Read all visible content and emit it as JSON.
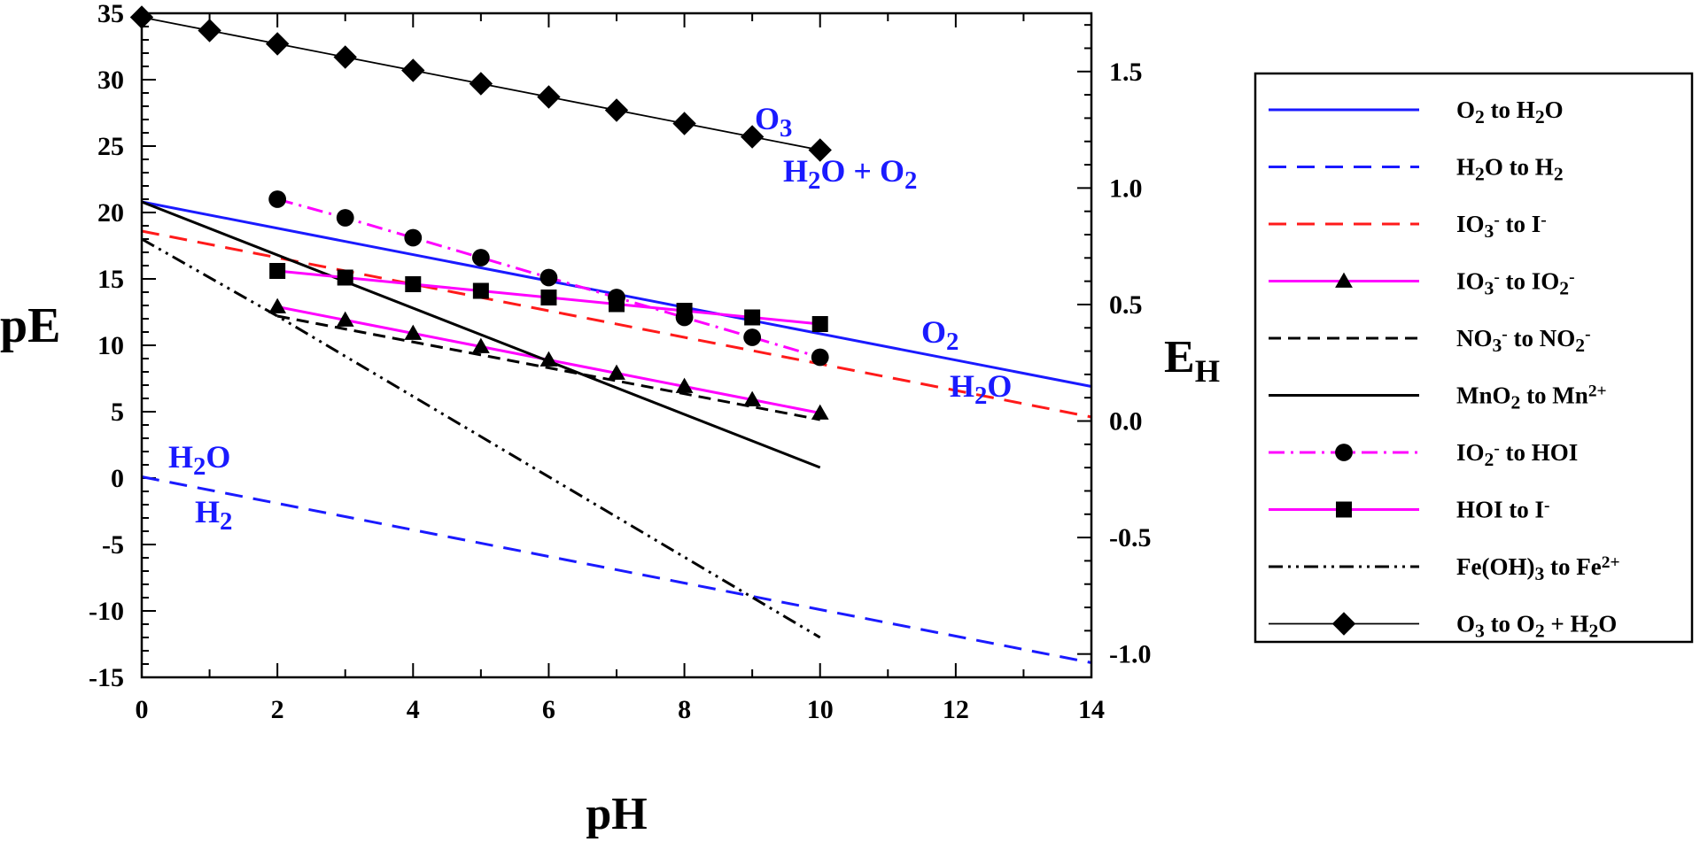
{
  "chart_data": {
    "type": "line",
    "title": "",
    "xlabel": "pH",
    "ylabel": "pE",
    "y2label": {
      "main": "E",
      "sub": "H"
    },
    "xlim": [
      0,
      14
    ],
    "ylim": [
      -15,
      35
    ],
    "y2lim": [
      -1.1,
      1.75
    ],
    "x_ticks": [
      "0",
      "2",
      "4",
      "6",
      "8",
      "10",
      "12",
      "14"
    ],
    "y_ticks": [
      "35",
      "30",
      "25",
      "20",
      "15",
      "10",
      "5",
      "0",
      "-5",
      "-10",
      "-15"
    ],
    "y2_ticks": [
      "1.5",
      "1.0",
      "0.5",
      "0.0",
      "-0.5",
      "-1.0"
    ],
    "y2_tick_values": [
      1.5,
      1.0,
      0.5,
      0.0,
      -0.5,
      -1.0
    ],
    "series": [
      {
        "key": "o2_h2o",
        "name": "O2 to H2O",
        "legend": {
          "parts": [
            [
              "O",
              ""
            ],
            [
              "2",
              "sub"
            ],
            [
              " to H",
              ""
            ],
            [
              "2",
              "sub"
            ],
            [
              "O",
              ""
            ]
          ]
        },
        "color": "#1a1aff",
        "dash": "",
        "marker": "none",
        "x": [
          0,
          14
        ],
        "y": [
          20.8,
          6.9
        ]
      },
      {
        "key": "h2o_h2",
        "name": "H2O to H2",
        "legend": {
          "parts": [
            [
              "H",
              ""
            ],
            [
              "2",
              "sub"
            ],
            [
              "O to H",
              ""
            ],
            [
              "2",
              "sub"
            ]
          ]
        },
        "color": "#1a1aff",
        "dash": "20 12",
        "marker": "none",
        "x": [
          0,
          14
        ],
        "y": [
          0.1,
          -13.9
        ]
      },
      {
        "key": "io3_i",
        "name": "IO3- to I-",
        "legend": {
          "parts": [
            [
              "IO",
              ""
            ],
            [
              "3",
              "sub"
            ],
            [
              "-",
              "sup"
            ],
            [
              " to I",
              ""
            ],
            [
              "-",
              "sup"
            ]
          ]
        },
        "color": "#ff1a1a",
        "dash": "20 12",
        "marker": "none",
        "x": [
          0,
          14
        ],
        "y": [
          18.6,
          4.6
        ]
      },
      {
        "key": "io3_io2",
        "name": "IO3- to IO2-",
        "legend": {
          "parts": [
            [
              "IO",
              ""
            ],
            [
              "3",
              "sub"
            ],
            [
              "-",
              "sup"
            ],
            [
              " to IO",
              ""
            ],
            [
              "2",
              "sub"
            ],
            [
              "-",
              "sup"
            ]
          ]
        },
        "color": "#ff00ff",
        "dash": "",
        "marker": "triangle",
        "x": [
          2,
          3,
          4,
          5,
          6,
          7,
          8,
          9,
          10
        ],
        "y": [
          12.9,
          11.9,
          10.9,
          9.9,
          8.9,
          7.9,
          6.9,
          5.9,
          4.9
        ]
      },
      {
        "key": "no3_no2",
        "name": "NO3- to NO2-",
        "legend": {
          "parts": [
            [
              "NO",
              ""
            ],
            [
              "3",
              "sub"
            ],
            [
              "-",
              "sup"
            ],
            [
              " to NO",
              ""
            ],
            [
              "2",
              "sub"
            ],
            [
              "-",
              "sup"
            ]
          ]
        },
        "color": "#000000",
        "dash": "14 8",
        "marker": "none",
        "x": [
          2,
          10
        ],
        "y": [
          12.2,
          4.4
        ]
      },
      {
        "key": "mno2_mn",
        "name": "MnO2 to Mn2+",
        "legend": {
          "parts": [
            [
              "MnO",
              ""
            ],
            [
              "2",
              "sub"
            ],
            [
              " to Mn",
              ""
            ],
            [
              "2+",
              "sup"
            ]
          ]
        },
        "color": "#000000",
        "dash": "",
        "marker": "none",
        "x": [
          0,
          10
        ],
        "y": [
          20.8,
          0.8
        ]
      },
      {
        "key": "io2_hoi",
        "name": "IO2- to HOI",
        "legend": {
          "parts": [
            [
              "IO",
              ""
            ],
            [
              "2",
              "sub"
            ],
            [
              "-",
              "sup"
            ],
            [
              " to HOI",
              ""
            ]
          ]
        },
        "color": "#ff00ff",
        "dash": "18 7 3 7",
        "marker": "circle",
        "x": [
          2,
          3,
          4,
          5,
          6,
          7,
          8,
          9,
          10
        ],
        "y": [
          21.0,
          19.6,
          18.1,
          16.6,
          15.1,
          13.6,
          12.1,
          10.6,
          9.1
        ]
      },
      {
        "key": "hoi_i",
        "name": "HOI to I-",
        "legend": {
          "parts": [
            [
              "HOI to I",
              ""
            ],
            [
              "-",
              "sup"
            ]
          ]
        },
        "color": "#ff00ff",
        "dash": "",
        "marker": "square",
        "x": [
          2,
          3,
          4,
          5,
          6,
          7,
          8,
          9,
          10
        ],
        "y": [
          15.6,
          15.1,
          14.6,
          14.1,
          13.6,
          13.1,
          12.6,
          12.1,
          11.6
        ]
      },
      {
        "key": "feoh3_fe",
        "name": "Fe(OH)3 to Fe2+",
        "legend": {
          "parts": [
            [
              "Fe(OH)",
              ""
            ],
            [
              "3",
              "sub"
            ],
            [
              " to Fe",
              ""
            ],
            [
              "2+",
              "sup"
            ]
          ]
        },
        "color": "#000000",
        "dash": "16 6 3 6 3 6",
        "marker": "none",
        "x": [
          0,
          2,
          10
        ],
        "y": [
          18.0,
          12.2,
          -12.0
        ]
      },
      {
        "key": "o3_o2",
        "name": "O3 to O2 + H2O",
        "legend": {
          "parts": [
            [
              "O",
              ""
            ],
            [
              "3",
              "sub"
            ],
            [
              " to O",
              ""
            ],
            [
              "2",
              "sub"
            ],
            [
              " + H",
              ""
            ],
            [
              "2",
              "sub"
            ],
            [
              "O",
              ""
            ]
          ]
        },
        "color": "#000000",
        "dash": "",
        "marker": "diamond",
        "x": [
          0,
          1,
          2,
          3,
          4,
          5,
          6,
          7,
          8,
          9,
          10
        ],
        "y": [
          34.7,
          33.7,
          32.7,
          31.7,
          30.7,
          29.7,
          28.7,
          27.7,
          26.7,
          25.7,
          24.7
        ]
      }
    ],
    "annotations": [
      {
        "key": "o3",
        "parts": [
          [
            "O",
            ""
          ],
          [
            "3",
            "sub"
          ]
        ]
      },
      {
        "key": "h2o_o2",
        "parts": [
          [
            "H",
            ""
          ],
          [
            "2",
            "sub"
          ],
          [
            "O + O",
            ""
          ],
          [
            "2",
            "sub"
          ]
        ]
      },
      {
        "key": "o2",
        "parts": [
          [
            "O",
            ""
          ],
          [
            "2",
            "sub"
          ]
        ]
      },
      {
        "key": "h2o_right",
        "parts": [
          [
            "H",
            ""
          ],
          [
            "2",
            "sub"
          ],
          [
            "O",
            ""
          ]
        ]
      },
      {
        "key": "h2o_left",
        "parts": [
          [
            "H",
            ""
          ],
          [
            "2",
            "sub"
          ],
          [
            "O",
            ""
          ]
        ]
      },
      {
        "key": "h2",
        "parts": [
          [
            "H",
            ""
          ],
          [
            "2",
            "sub"
          ]
        ]
      }
    ],
    "legend_position": "right"
  }
}
